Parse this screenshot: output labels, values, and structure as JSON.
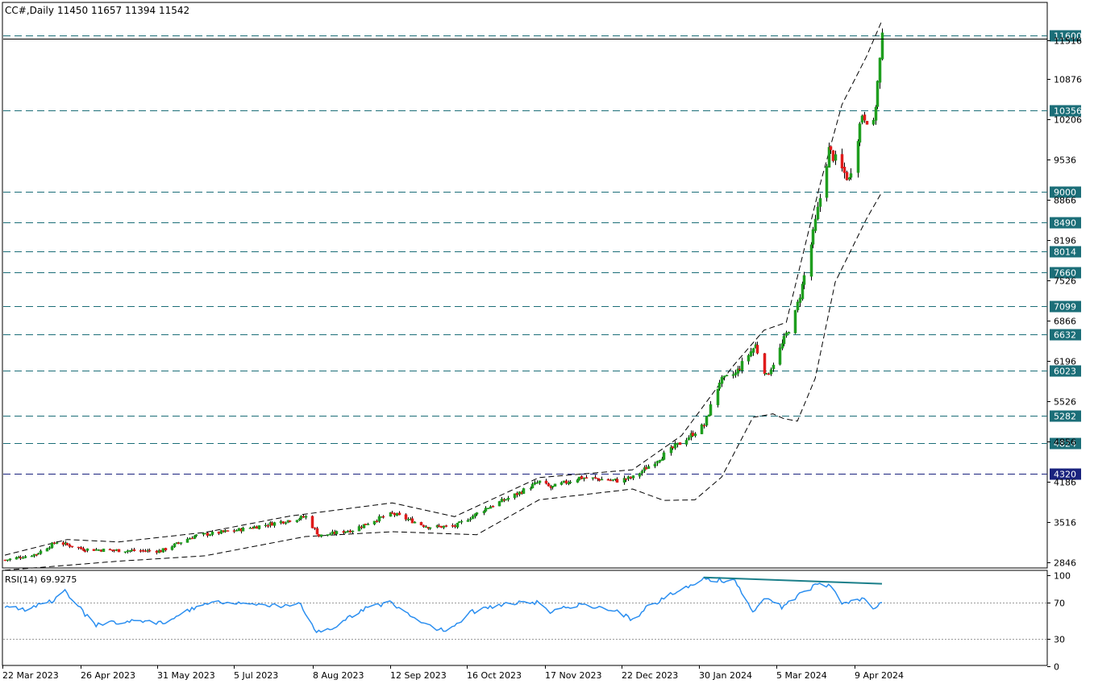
{
  "header": {
    "symbol": "CC#,Daily",
    "ohlc": "11450 11657 11394 11542"
  },
  "rsi_header": "RSI(14) 69.9275",
  "colors": {
    "background": "#ffffff",
    "frame": "#000000",
    "bull_candle": "#1f9e1f",
    "bear_candle": "#e01b1b",
    "bollinger": "#000000",
    "level_line": "#1b6e78",
    "level_label_bg": "#1b6e78",
    "level_label_bg_dark": "#1a237e",
    "level_label_text": "#ffffff",
    "rsi_line": "#2a8ef0",
    "rsi_divergence": "#1b7f8a",
    "rsi_level": "#9a9a9a",
    "axis_text": "#000000"
  },
  "chart_data": [
    {
      "type": "candlestick",
      "title": "CC#,Daily",
      "date_range": [
        "2023-03-22",
        "2024-04-19"
      ],
      "x_tick_labels": [
        "22 Mar 2023",
        "26 Apr 2023",
        "31 May 2023",
        "5 Jul 2023",
        "8 Aug 2023",
        "12 Sep 2023",
        "16 Oct 2023",
        "17 Nov 2023",
        "22 Dec 2023",
        "30 Jan 2024",
        "5 Mar 2024",
        "9 Apr 2024"
      ],
      "y_tick_labels": [
        11516,
        10876,
        10206,
        9536,
        8866,
        8196,
        7526,
        6866,
        6196,
        5526,
        4856,
        4186,
        3516,
        2846
      ],
      "ylim": [
        2600,
        11950
      ],
      "last_close_label": "11542",
      "horizontal_levels": [
        11600,
        10356,
        9000,
        8490,
        8014,
        7660,
        7099,
        6632,
        6023,
        5282,
        4824,
        4320
      ],
      "highlight_level": 4320,
      "close_path": [
        [
          "2023-03-22",
          2880
        ],
        [
          "2023-04-05",
          2980
        ],
        [
          "2023-04-14",
          3180
        ],
        [
          "2023-04-26",
          3060
        ],
        [
          "2023-05-10",
          3040
        ],
        [
          "2023-05-31",
          3030
        ],
        [
          "2023-06-15",
          3280
        ],
        [
          "2023-07-05",
          3380
        ],
        [
          "2023-07-26",
          3530
        ],
        [
          "2023-08-04",
          3600
        ],
        [
          "2023-08-10",
          3280
        ],
        [
          "2023-08-25",
          3380
        ],
        [
          "2023-09-05",
          3560
        ],
        [
          "2023-09-12",
          3650
        ],
        [
          "2023-09-28",
          3430
        ],
        [
          "2023-10-10",
          3440
        ],
        [
          "2023-10-24",
          3740
        ],
        [
          "2023-11-06",
          3960
        ],
        [
          "2023-11-17",
          4180
        ],
        [
          "2023-11-22",
          4080
        ],
        [
          "2023-12-05",
          4250
        ],
        [
          "2023-12-22",
          4200
        ],
        [
          "2023-12-29",
          4250
        ],
        [
          "2024-01-12",
          4630
        ],
        [
          "2024-01-30",
          5120
        ],
        [
          "2024-02-06",
          5850
        ],
        [
          "2024-02-13",
          5980
        ],
        [
          "2024-02-22",
          6450
        ],
        [
          "2024-02-27",
          5930
        ],
        [
          "2024-03-05",
          6460
        ],
        [
          "2024-03-11",
          6980
        ],
        [
          "2024-03-15",
          7600
        ],
        [
          "2024-03-19",
          8300
        ],
        [
          "2024-03-26",
          9700
        ],
        [
          "2024-04-04",
          9200
        ],
        [
          "2024-04-10",
          10300
        ],
        [
          "2024-04-15",
          10100
        ],
        [
          "2024-04-19",
          11542
        ]
      ],
      "bollinger_upper": [
        [
          "2023-03-22",
          2960
        ],
        [
          "2023-04-19",
          3220
        ],
        [
          "2023-05-12",
          3180
        ],
        [
          "2023-06-20",
          3340
        ],
        [
          "2023-07-28",
          3610
        ],
        [
          "2023-09-12",
          3830
        ],
        [
          "2023-10-10",
          3600
        ],
        [
          "2023-11-17",
          4250
        ],
        [
          "2023-12-29",
          4380
        ],
        [
          "2024-01-20",
          4950
        ],
        [
          "2024-02-12",
          6100
        ],
        [
          "2024-02-26",
          6700
        ],
        [
          "2024-03-07",
          6830
        ],
        [
          "2024-03-22",
          9100
        ],
        [
          "2024-04-01",
          10450
        ],
        [
          "2024-04-12",
          11250
        ],
        [
          "2024-04-19",
          11850
        ]
      ],
      "bollinger_lower": [
        [
          "2023-03-22",
          2710
        ],
        [
          "2023-05-12",
          2860
        ],
        [
          "2023-06-20",
          2950
        ],
        [
          "2023-08-04",
          3270
        ],
        [
          "2023-09-12",
          3350
        ],
        [
          "2023-10-20",
          3300
        ],
        [
          "2023-11-17",
          3880
        ],
        [
          "2023-12-29",
          4060
        ],
        [
          "2024-01-12",
          3870
        ],
        [
          "2024-01-26",
          3880
        ],
        [
          "2024-02-07",
          4260
        ],
        [
          "2024-02-21",
          5250
        ],
        [
          "2024-03-01",
          5310
        ],
        [
          "2024-03-06",
          5230
        ],
        [
          "2024-03-12",
          5190
        ],
        [
          "2024-03-20",
          5900
        ],
        [
          "2024-03-29",
          7500
        ],
        [
          "2024-04-12",
          8550
        ],
        [
          "2024-04-19",
          9000
        ]
      ]
    },
    {
      "type": "line",
      "title": "RSI(14) 69.9275",
      "ylim": [
        -2,
        104
      ],
      "y_tick_labels": [
        100,
        70,
        30,
        0
      ],
      "levels": [
        70,
        30
      ],
      "series": [
        {
          "values": [
            [
              "2023-03-22",
              66
            ],
            [
              "2023-03-31",
              62
            ],
            [
              "2023-04-12",
              72
            ],
            [
              "2023-04-18",
              84
            ],
            [
              "2023-04-26",
              60
            ],
            [
              "2023-05-02",
              45
            ],
            [
              "2023-05-20",
              52
            ],
            [
              "2023-06-01",
              47
            ],
            [
              "2023-06-20",
              70
            ],
            [
              "2023-07-12",
              70
            ],
            [
              "2023-07-26",
              66
            ],
            [
              "2023-08-01",
              71
            ],
            [
              "2023-08-09",
              36
            ],
            [
              "2023-08-17",
              44
            ],
            [
              "2023-09-01",
              65
            ],
            [
              "2023-09-12",
              70
            ],
            [
              "2023-09-25",
              48
            ],
            [
              "2023-10-06",
              38
            ],
            [
              "2023-10-18",
              60
            ],
            [
              "2023-10-31",
              68
            ],
            [
              "2023-11-17",
              71
            ],
            [
              "2023-11-22",
              60
            ],
            [
              "2023-12-05",
              68
            ],
            [
              "2023-12-22",
              62
            ],
            [
              "2023-12-29",
              50
            ],
            [
              "2024-01-05",
              66
            ],
            [
              "2024-01-20",
              85
            ],
            [
              "2024-01-30",
              97
            ],
            [
              "2024-02-13",
              93
            ],
            [
              "2024-02-21",
              60
            ],
            [
              "2024-02-27",
              76
            ],
            [
              "2024-03-05",
              65
            ],
            [
              "2024-03-15",
              82
            ],
            [
              "2024-03-22",
              92
            ],
            [
              "2024-03-27",
              87
            ],
            [
              "2024-04-01",
              70
            ],
            [
              "2024-04-10",
              75
            ],
            [
              "2024-04-15",
              62
            ],
            [
              "2024-04-19",
              69.9275
            ]
          ]
        }
      ],
      "divergence_line": [
        [
          "2024-01-30",
          98
        ],
        [
          "2024-04-19",
          91
        ]
      ]
    }
  ]
}
